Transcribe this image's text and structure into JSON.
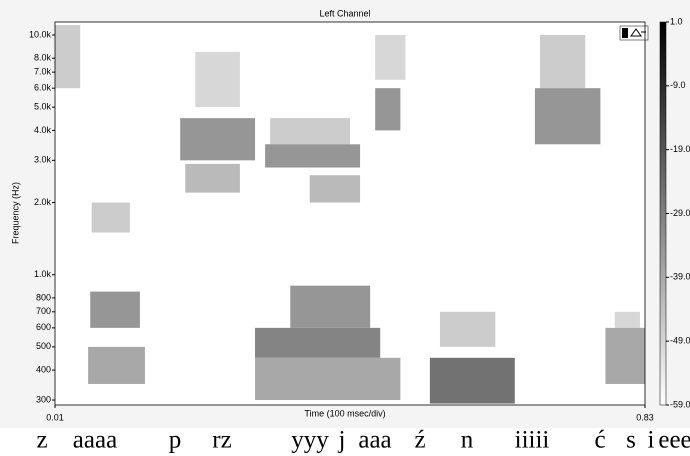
{
  "chart_data": {
    "type": "spectrogram",
    "title": "Left Channel",
    "x_label": "Time (100 msec/div)",
    "y_label": "Frequency (Hz)",
    "xlim": [
      0.01,
      0.83
    ],
    "xticks": [
      0.01,
      0.83
    ],
    "ylim": [
      286,
      11330
    ],
    "log_y": true,
    "yticks": [
      {
        "value": 10000,
        "label": "10.0k"
      },
      {
        "value": 8000,
        "label": "8.0k"
      },
      {
        "value": 7000,
        "label": "7.0k"
      },
      {
        "value": 6000,
        "label": "6.0k"
      },
      {
        "value": 5000,
        "label": "5.0k"
      },
      {
        "value": 4000,
        "label": "4.0k"
      },
      {
        "value": 3000,
        "label": "3.0k"
      },
      {
        "value": 2000,
        "label": "2.0k"
      },
      {
        "value": 1000,
        "label": "1.0k"
      },
      800,
      700,
      600,
      500,
      400,
      300
    ],
    "clim": [
      -59,
      1
    ],
    "cticks": [
      {
        "value": 1,
        "label": "1.0"
      },
      {
        "value": -9,
        "label": "-9.0"
      },
      {
        "value": -19,
        "label": "-19.0"
      },
      {
        "value": -29,
        "label": "-29.0"
      },
      {
        "value": -39,
        "label": "-39.0"
      },
      {
        "value": -49,
        "label": "-49.0"
      },
      {
        "value": -59,
        "label": "-59.0"
      }
    ],
    "cells": [
      {
        "t": [
          0.01,
          0.045
        ],
        "f": [
          6000,
          11000
        ],
        "v": -45
      },
      {
        "t": [
          0.061,
          0.114
        ],
        "f": [
          1500,
          2000
        ],
        "v": -45
      },
      {
        "t": [
          0.059,
          0.128
        ],
        "f": [
          600,
          850
        ],
        "v": -30
      },
      {
        "t": [
          0.056,
          0.135
        ],
        "f": [
          350,
          500
        ],
        "v": -35
      },
      {
        "t": [
          0.205,
          0.267
        ],
        "f": [
          5000,
          8500
        ],
        "v": -48
      },
      {
        "t": [
          0.184,
          0.288
        ],
        "f": [
          3000,
          4500
        ],
        "v": -30
      },
      {
        "t": [
          0.191,
          0.267
        ],
        "f": [
          2200,
          2900
        ],
        "v": -40
      },
      {
        "t": [
          0.309,
          0.42
        ],
        "f": [
          3500,
          4500
        ],
        "v": -45
      },
      {
        "t": [
          0.302,
          0.434
        ],
        "f": [
          2800,
          3500
        ],
        "v": -30
      },
      {
        "t": [
          0.364,
          0.434
        ],
        "f": [
          2000,
          2600
        ],
        "v": -40
      },
      {
        "t": [
          0.337,
          0.448
        ],
        "f": [
          600,
          900
        ],
        "v": -30
      },
      {
        "t": [
          0.288,
          0.462
        ],
        "f": [
          450,
          600
        ],
        "v": -25
      },
      {
        "t": [
          0.288,
          0.49
        ],
        "f": [
          300,
          450
        ],
        "v": -35
      },
      {
        "t": [
          0.455,
          0.497
        ],
        "f": [
          6500,
          10000
        ],
        "v": -48
      },
      {
        "t": [
          0.455,
          0.49
        ],
        "f": [
          4000,
          6000
        ],
        "v": -30
      },
      {
        "t": [
          0.545,
          0.622
        ],
        "f": [
          500,
          700
        ],
        "v": -45
      },
      {
        "t": [
          0.531,
          0.649
        ],
        "f": [
          290,
          450
        ],
        "v": -20
      },
      {
        "t": [
          0.684,
          0.747
        ],
        "f": [
          6000,
          10000
        ],
        "v": -45
      },
      {
        "t": [
          0.677,
          0.768
        ],
        "f": [
          3500,
          6000
        ],
        "v": -30
      },
      {
        "t": [
          0.788,
          0.823
        ],
        "f": [
          600,
          700
        ],
        "v": -48
      },
      {
        "t": [
          0.775,
          0.83
        ],
        "f": [
          350,
          600
        ],
        "v": -35
      }
    ],
    "transcript": [
      "z",
      "aaaa",
      "p",
      "rz",
      "yyy",
      "j",
      "aaa",
      "ź",
      "n",
      "iiiii",
      "ć",
      "s",
      "i",
      "eee"
    ]
  }
}
